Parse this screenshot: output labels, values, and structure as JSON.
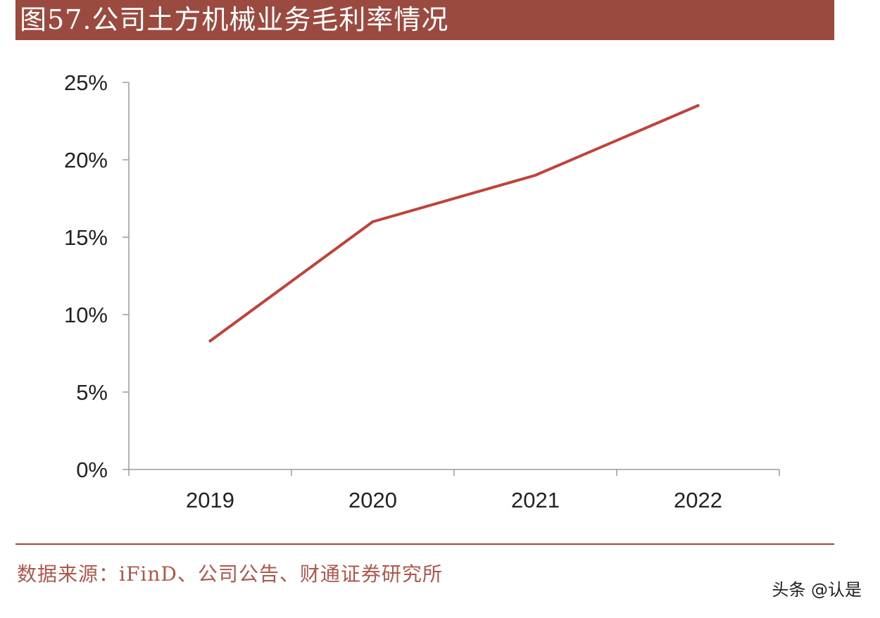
{
  "header": {
    "title": "图57.公司土方机械业务毛利率情况"
  },
  "footer": {
    "source": "数据来源：iFinD、公司公告、财通证券研究所",
    "watermark": "头条 @认是"
  },
  "chart_data": {
    "type": "line",
    "categories": [
      "2019",
      "2020",
      "2021",
      "2022"
    ],
    "series": [
      {
        "values": [
          8.3,
          16.0,
          19.0,
          23.5
        ],
        "color": "#c0433a"
      }
    ],
    "yticks": [
      "0%",
      "5%",
      "10%",
      "15%",
      "20%",
      "25%"
    ],
    "ylim": [
      0,
      25
    ],
    "grid": false,
    "legend": "none"
  }
}
